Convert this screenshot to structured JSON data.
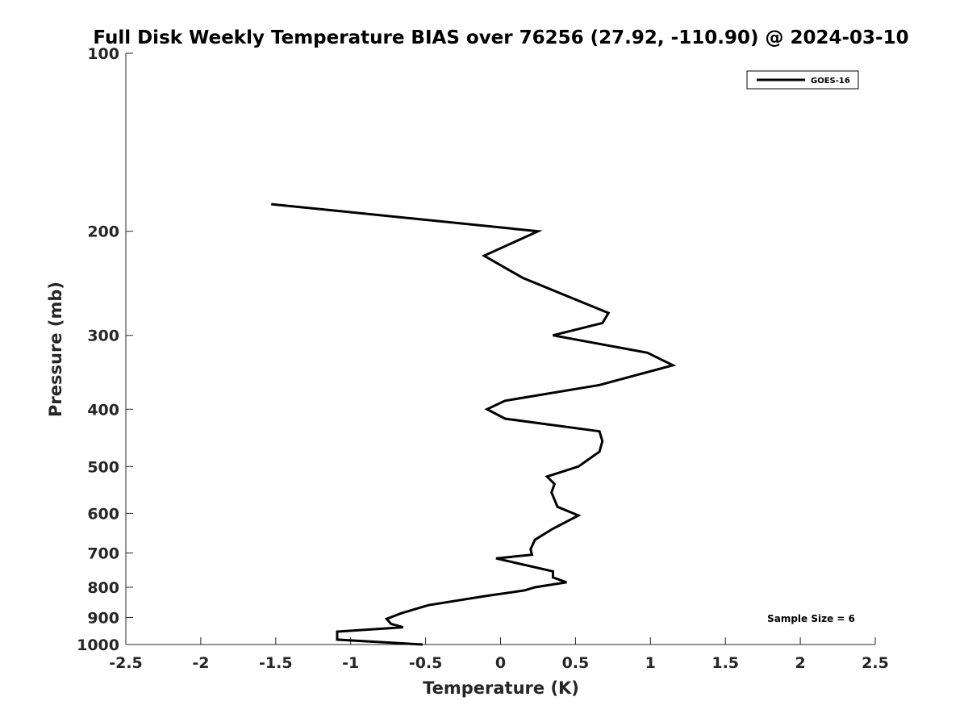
{
  "chart_data": {
    "type": "line",
    "title": "Full Disk Weekly Temperature BIAS over 76256 (27.92, -110.90) @ 2024-03-10",
    "xlabel": "Temperature (K)",
    "ylabel": "Pressure (mb)",
    "xlim": [
      -2.5,
      2.5
    ],
    "ylim": [
      100,
      1000
    ],
    "y_scale": "log",
    "y_reversed": true,
    "grid": false,
    "legend_position": "top-right",
    "xticks": [
      -2.5,
      -2,
      -1.5,
      -1,
      -0.5,
      0,
      0.5,
      1,
      1.5,
      2,
      2.5
    ],
    "xtick_labels": [
      "-2.5",
      "-2",
      "-1.5",
      "-1",
      "-0.5",
      "0",
      "0.5",
      "1",
      "1.5",
      "2",
      "2.5"
    ],
    "yticks": [
      100,
      200,
      300,
      400,
      500,
      600,
      700,
      800,
      900,
      1000
    ],
    "ytick_labels": [
      "100",
      "200",
      "300",
      "400",
      "500",
      "600",
      "700",
      "800",
      "900",
      "1000"
    ],
    "series": [
      {
        "name": "GOES-16",
        "color": "#000000",
        "points": [
          [
            -1.53,
            180
          ],
          [
            0.25,
            200
          ],
          [
            -0.11,
            220
          ],
          [
            0.15,
            240
          ],
          [
            0.72,
            275
          ],
          [
            0.68,
            286
          ],
          [
            0.35,
            300
          ],
          [
            0.98,
            321
          ],
          [
            1.15,
            337
          ],
          [
            0.66,
            364
          ],
          [
            0.03,
            387
          ],
          [
            -0.09,
            400
          ],
          [
            0.03,
            415
          ],
          [
            0.66,
            436
          ],
          [
            0.68,
            453
          ],
          [
            0.66,
            472
          ],
          [
            0.52,
            500
          ],
          [
            0.31,
            520
          ],
          [
            0.36,
            535
          ],
          [
            0.34,
            553
          ],
          [
            0.38,
            585
          ],
          [
            0.52,
            605
          ],
          [
            0.35,
            637
          ],
          [
            0.23,
            665
          ],
          [
            0.2,
            690
          ],
          [
            0.21,
            705
          ],
          [
            -0.03,
            715
          ],
          [
            0.35,
            752
          ],
          [
            0.35,
            770
          ],
          [
            0.44,
            785
          ],
          [
            0.23,
            800
          ],
          [
            0.16,
            810
          ],
          [
            -0.1,
            828
          ],
          [
            -0.48,
            858
          ],
          [
            -0.66,
            885
          ],
          [
            -0.76,
            905
          ],
          [
            -0.73,
            923
          ],
          [
            -0.65,
            935
          ],
          [
            -1.09,
            951
          ],
          [
            -1.09,
            981
          ],
          [
            -0.52,
            1000
          ]
        ]
      }
    ],
    "annotations": [
      "Sample Size = 6"
    ]
  }
}
